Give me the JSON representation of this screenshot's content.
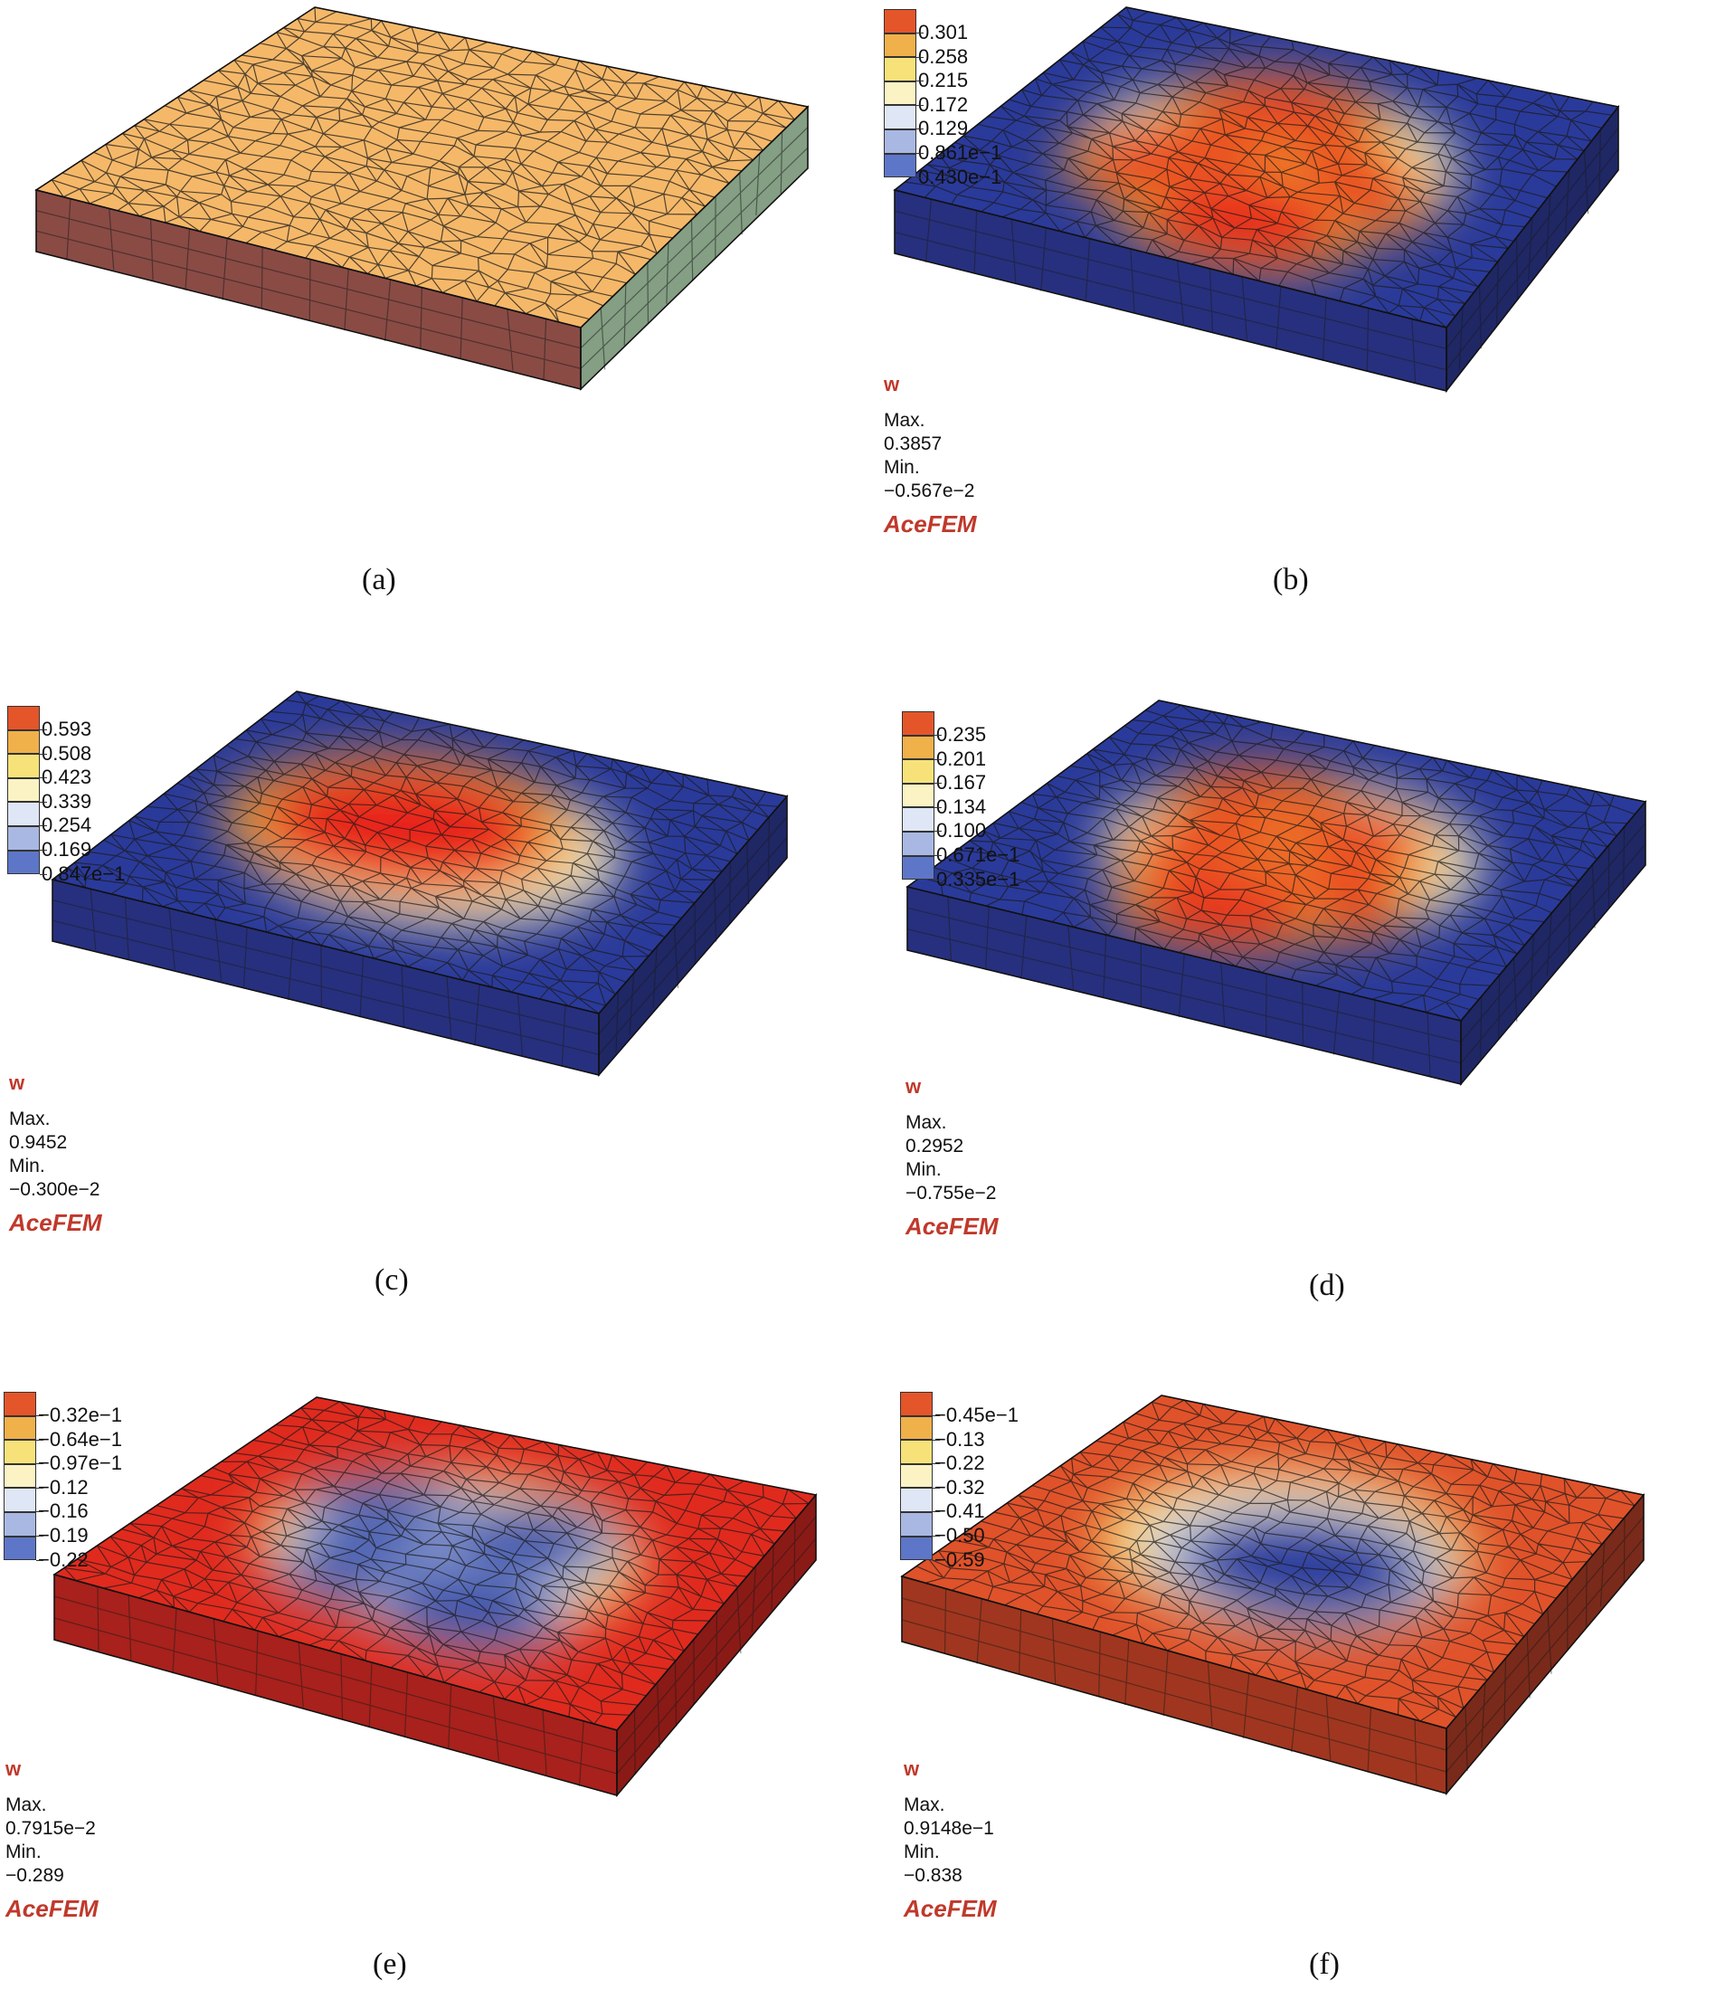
{
  "panels": [
    {
      "id": "a",
      "caption": "(a)",
      "kind": "mesh",
      "colors": {
        "top": "#f5b869",
        "left": "#8a4b45",
        "right": "#849f84"
      }
    },
    {
      "id": "b",
      "caption": "(b)",
      "kind": "field",
      "legend": [
        "0.301",
        "0.258",
        "0.215",
        "0.172",
        "0.129",
        "0.861e−1",
        "0.430e−1"
      ],
      "variable": "w",
      "max_label": "Max.",
      "max_value": "0.3857",
      "min_label": "Min.",
      "min_value": "−0.567e−2",
      "brand": "AceFEM",
      "base_color": "#2a3a9a",
      "side_color": "#27307e",
      "side_color2": "#1f2765",
      "peak_color": "#e8211b"
    },
    {
      "id": "c",
      "caption": "(c)",
      "kind": "field",
      "legend": [
        "0.593",
        "0.508",
        "0.423",
        "0.339",
        "0.254",
        "0.169",
        "0.847e−1"
      ],
      "variable": "w",
      "max_label": "Max.",
      "max_value": "0.9452",
      "min_label": "Min.",
      "min_value": "−0.300e−2",
      "brand": "AceFEM",
      "base_color": "#2a3a9a",
      "side_color": "#27307e",
      "side_color2": "#1f2765",
      "peak_color": "#e8211b"
    },
    {
      "id": "d",
      "caption": "(d)",
      "kind": "field",
      "legend": [
        "0.235",
        "0.201",
        "0.167",
        "0.134",
        "0.100",
        "0.671e−1",
        "0.335e−1"
      ],
      "variable": "w",
      "max_label": "Max.",
      "max_value": "0.2952",
      "min_label": "Min.",
      "min_value": "−0.755e−2",
      "brand": "AceFEM",
      "base_color": "#2a3a9a",
      "side_color": "#27307e",
      "side_color2": "#1f2765",
      "peak_color": "#e8211b"
    },
    {
      "id": "e",
      "caption": "(e)",
      "kind": "field",
      "legend": [
        "−0.32e−1",
        "−0.64e−1",
        "−0.97e−1",
        "−0.12",
        "−0.16",
        "−0.19",
        "−0.22"
      ],
      "variable": "w",
      "max_label": "Max.",
      "max_value": "0.7915e−2",
      "min_label": "Min.",
      "min_value": "−0.289",
      "brand": "AceFEM",
      "base_color": "#e02a1e",
      "side_color": "#a8211c",
      "side_color2": "#8a1a16",
      "peak_color": "#2f4aa8"
    },
    {
      "id": "f",
      "caption": "(f)",
      "kind": "field",
      "legend": [
        "−0.45e−1",
        "−0.13",
        "−0.22",
        "−0.32",
        "−0.41",
        "−0.50",
        "−0.59"
      ],
      "variable": "w",
      "max_label": "Max.",
      "max_value": "0.9148e−1",
      "min_label": "Min.",
      "min_value": "−0.838",
      "brand": "AceFEM",
      "base_color": "#e0522a",
      "side_color": "#a0361f",
      "side_color2": "#7a2a1a",
      "peak_color": "#2a3d9e"
    }
  ],
  "legend_colors": [
    "#e5552a",
    "#f0b04a",
    "#f7e27a",
    "#fbf3c4",
    "#dfe6f5",
    "#a9b8e2",
    "#5d76c7"
  ]
}
